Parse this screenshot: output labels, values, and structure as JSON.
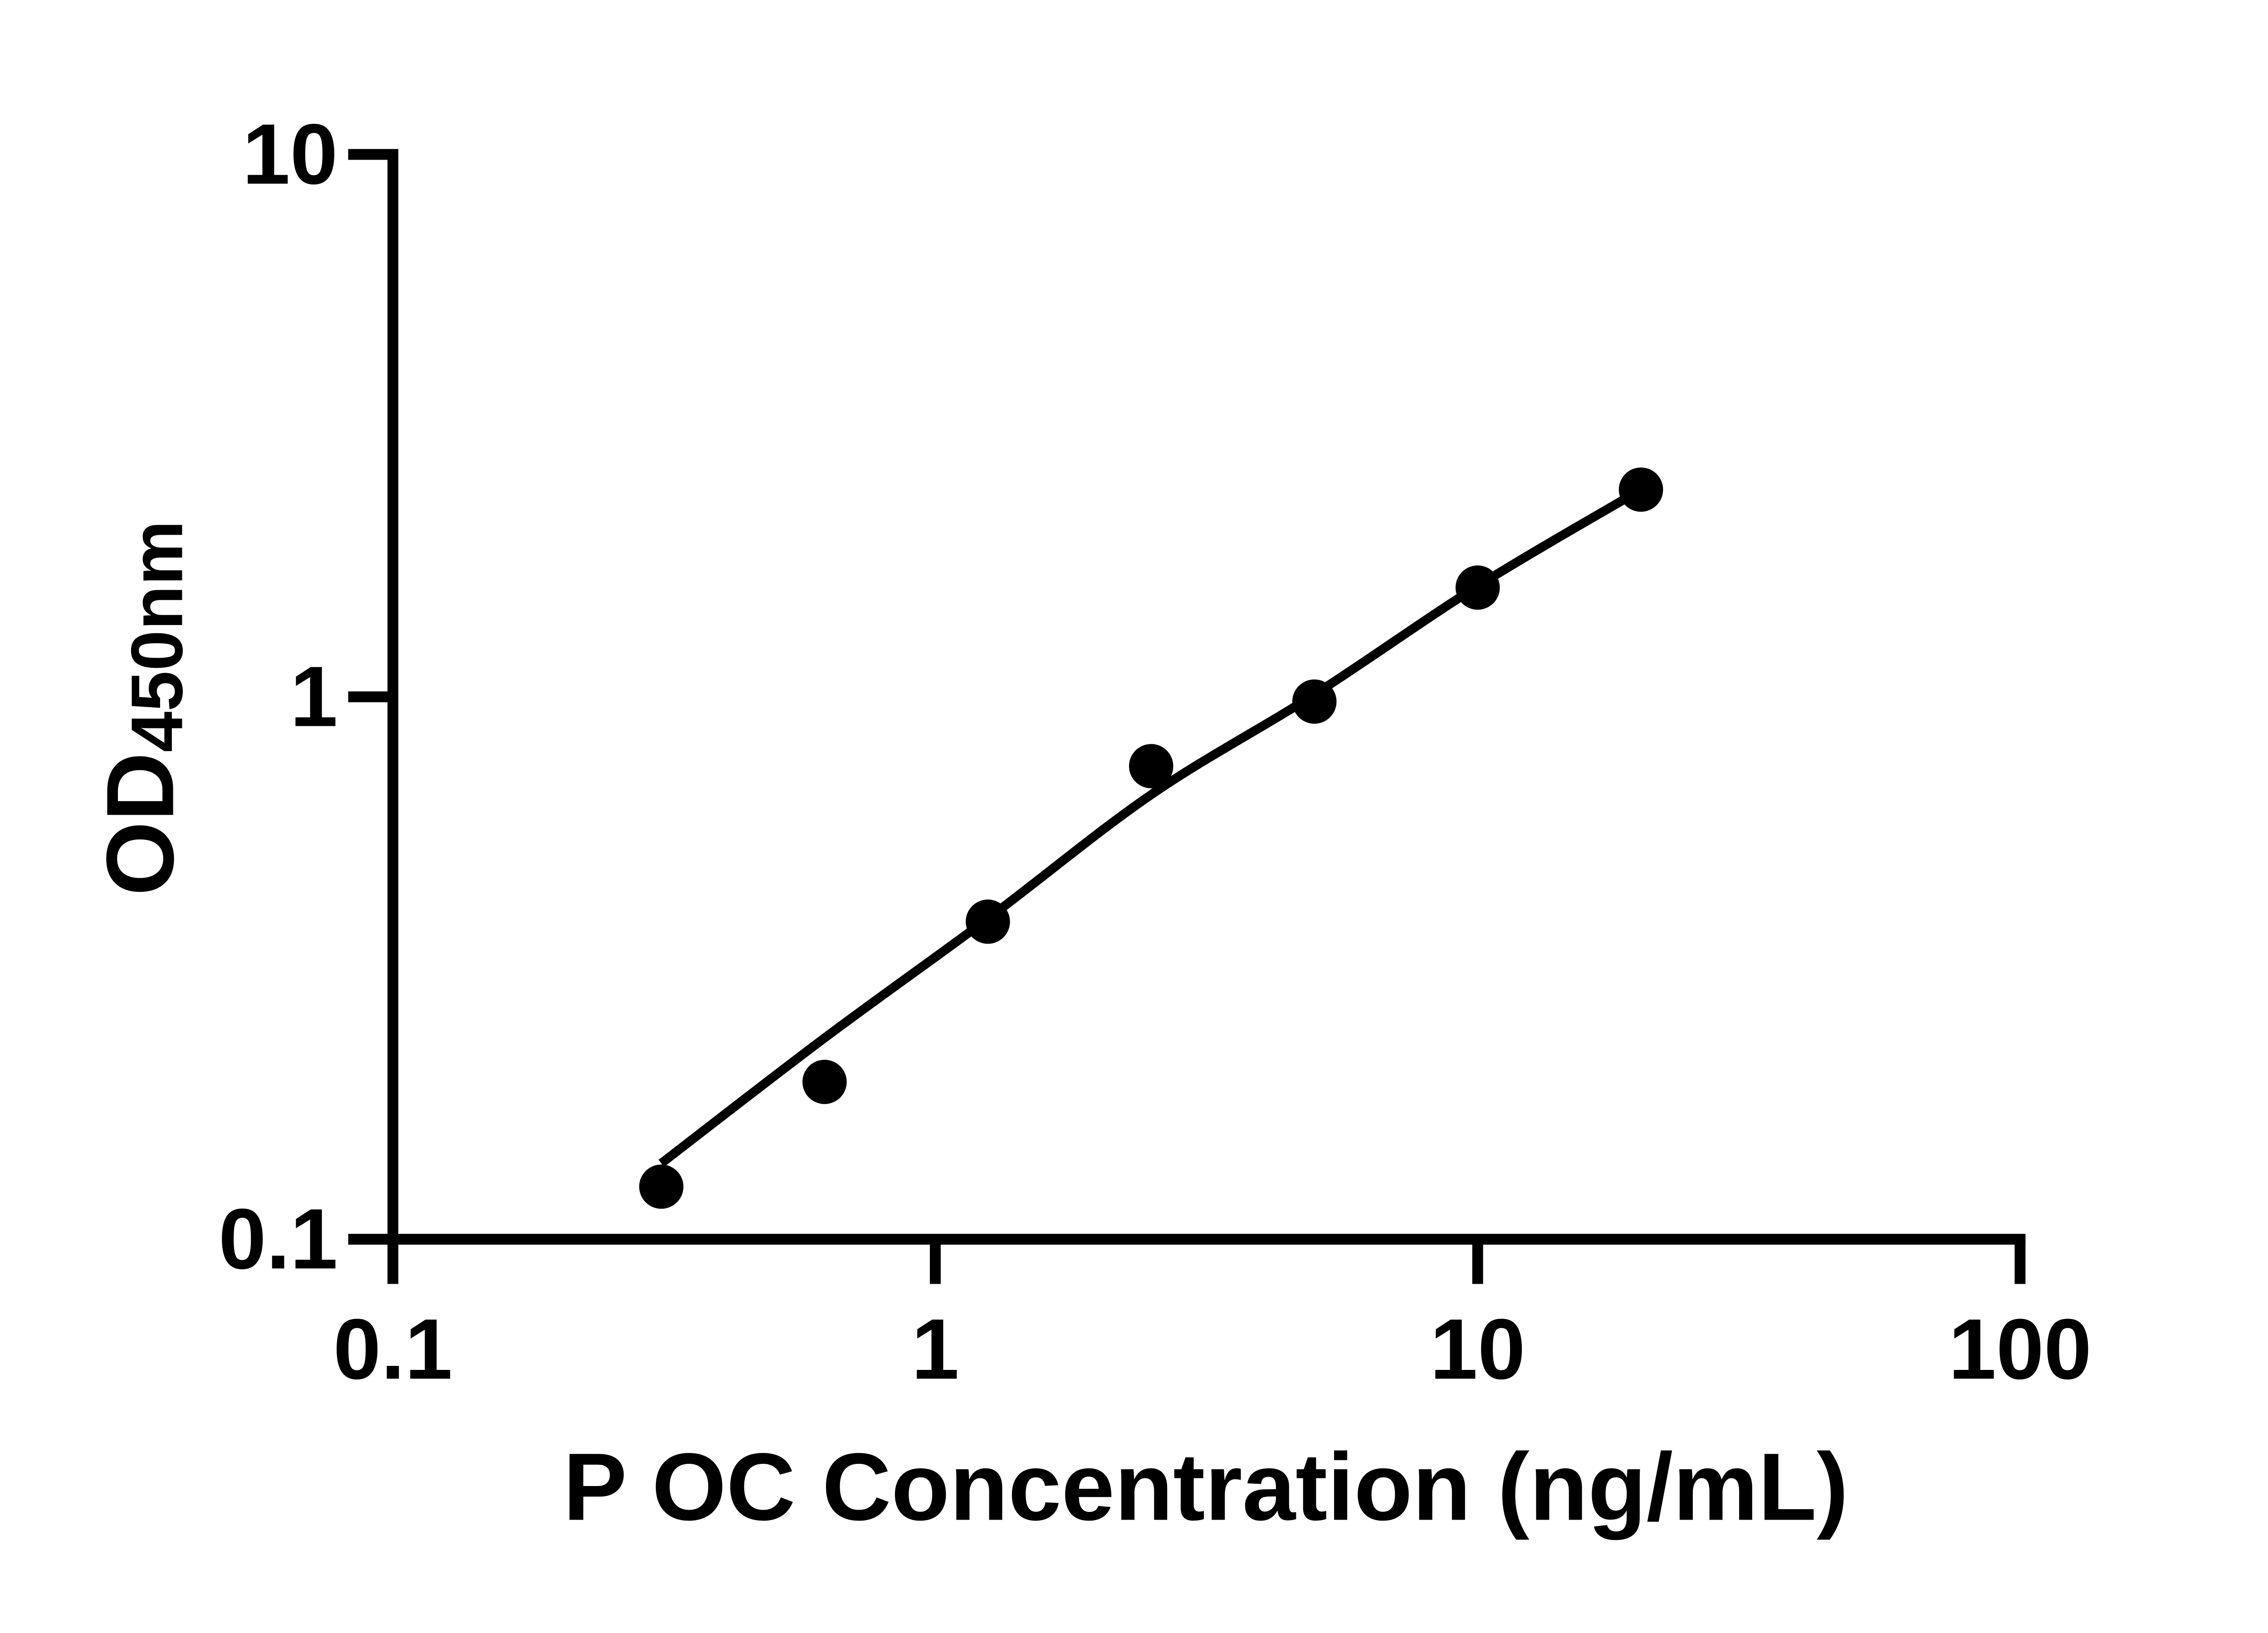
{
  "page": {
    "background_color": "#ffffff"
  },
  "chart_data": {
    "type": "scatter",
    "x_scale": "log",
    "y_scale": "log",
    "xlim": [
      0.1,
      100
    ],
    "ylim": [
      0.1,
      10
    ],
    "grid": false,
    "legend_position": "none",
    "x_tick_labels": [
      "0.1",
      "1",
      "10",
      "100"
    ],
    "y_tick_labels": [
      "0.1",
      "1",
      "10"
    ],
    "xlabel": "P OC Concentration (ng/mL)",
    "ylabel_main": "OD",
    "ylabel_sub": "450nm",
    "axis_color": "#000000",
    "marker_color": "#000000",
    "fit_line_color": "#000000",
    "series": [
      {
        "name": "standard-curve-points",
        "x": [
          0.3125,
          0.625,
          1.25,
          2.5,
          5,
          10,
          20
        ],
        "y": [
          0.125,
          0.195,
          0.385,
          0.745,
          0.98,
          1.59,
          2.41
        ]
      }
    ],
    "fit_line": {
      "x": [
        0.3125,
        0.625,
        1.25,
        2.5,
        5,
        10,
        20
      ],
      "y": [
        0.138,
        0.235,
        0.39,
        0.66,
        1.01,
        1.6,
        2.41
      ]
    }
  }
}
